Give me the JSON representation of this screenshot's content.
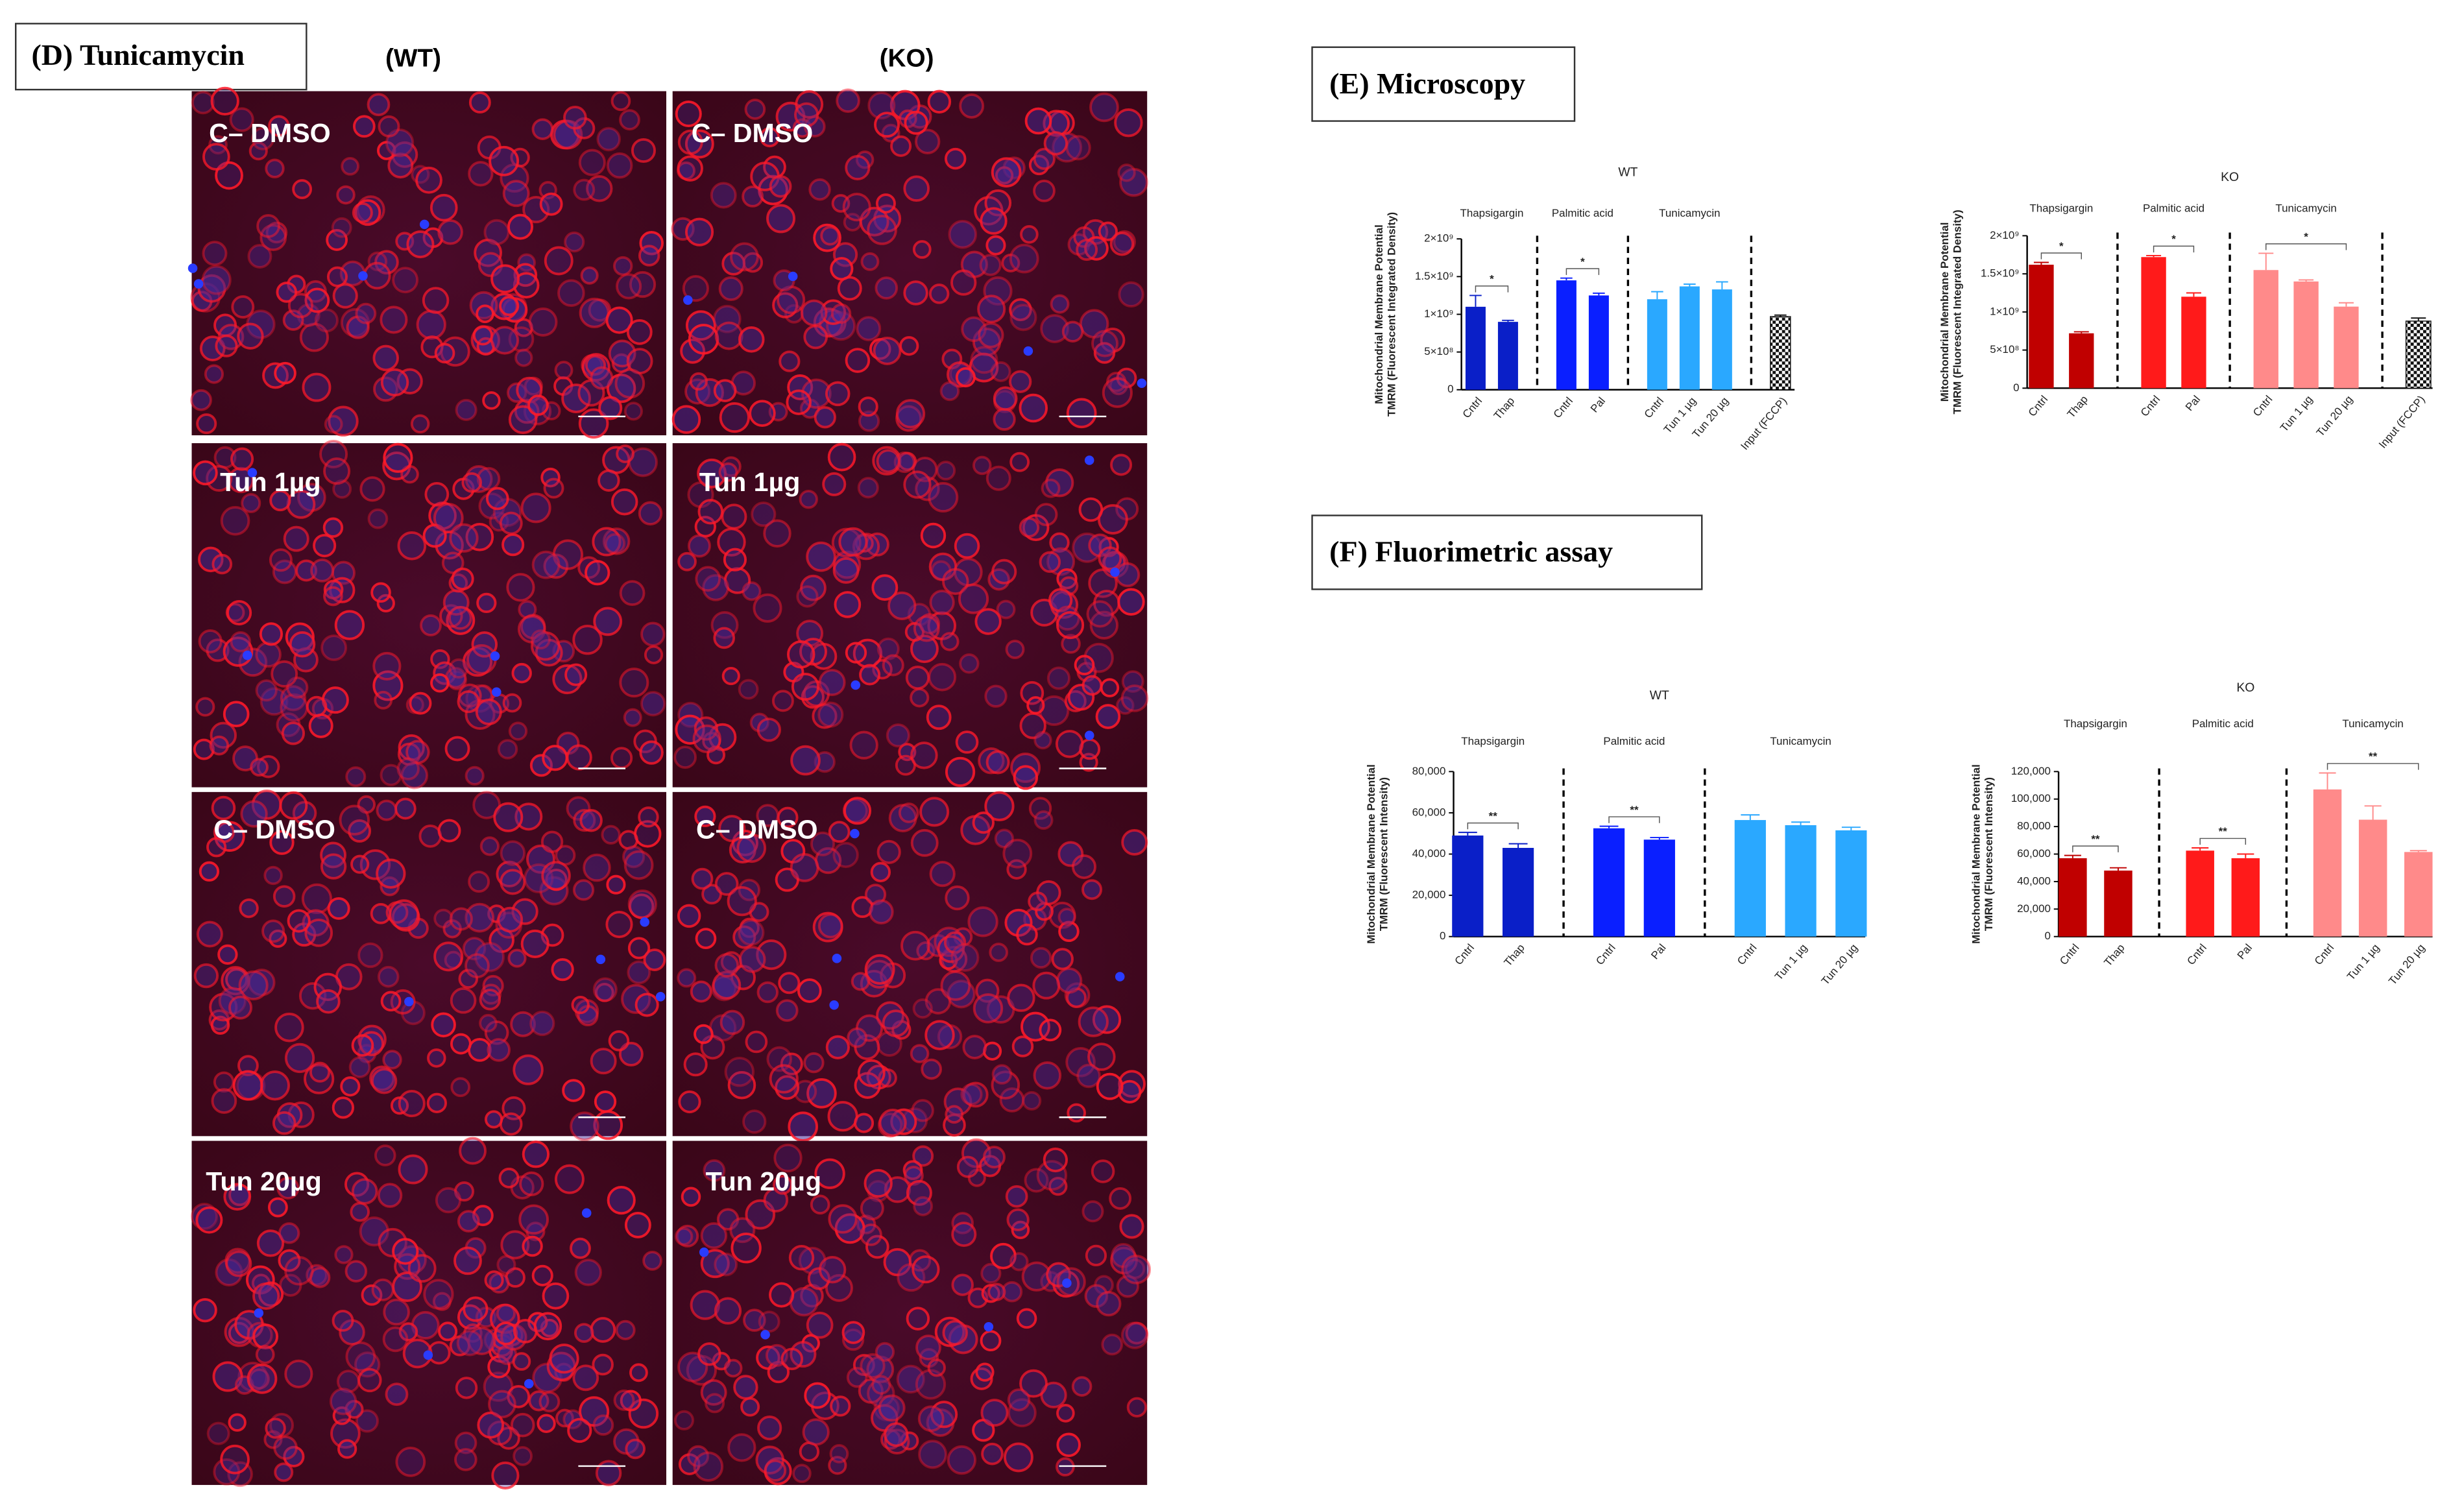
{
  "panels": {
    "D": "(D) Tunicamycin",
    "E": "(E) Microscopy",
    "F": "(F) Fluorimetric assay"
  },
  "microscopy": {
    "columns": [
      "(WT)",
      "(KO)"
    ],
    "rows": [
      [
        "C– DMSO",
        "C– DMSO"
      ],
      [
        "Tun 1µg",
        "Tun 1µg"
      ],
      [
        "C– DMSO",
        "C– DMSO"
      ],
      [
        "Tun 20µg",
        "Tun 20µg"
      ]
    ]
  },
  "chart_data": [
    {
      "type": "bar",
      "title": "WT",
      "ylabel": [
        "Mitochondrial Membrane Potential",
        "TMRM (Fluorescent Integrated Density)"
      ],
      "categories": [
        "Cntrl",
        "Thap",
        "Cntrl",
        "Pal",
        "Cntrl",
        "Tun 1 µg",
        "Tun 20 µg",
        "Input (FCCP)"
      ],
      "values": [
        1100000000,
        900000000,
        1450000000,
        1250000000,
        1200000000,
        1370000000,
        1330000000,
        970000000
      ],
      "errors": [
        150000000,
        20000000,
        30000000,
        30000000,
        100000000,
        30000000,
        100000000,
        20000000
      ],
      "colors": [
        "#0a1fc8",
        "#0a1fc8",
        "#0a1fff",
        "#0a1fff",
        "#2aa8ff",
        "#2aa8ff",
        "#2aa8ff",
        "#111111"
      ],
      "patterns": [
        null,
        null,
        null,
        null,
        null,
        null,
        null,
        "checker"
      ],
      "groups": [
        {
          "name": "Thapsigargin",
          "categories": [
            0,
            1
          ]
        },
        {
          "name": "Palmitic acid",
          "categories": [
            2,
            3
          ]
        },
        {
          "name": "Tunicamycin",
          "categories": [
            4,
            5,
            6
          ]
        },
        {
          "categories": [
            7
          ]
        }
      ],
      "annotations": [
        {
          "text": "*",
          "bars": [
            0,
            1
          ]
        },
        {
          "text": "*",
          "bars": [
            2,
            3
          ]
        }
      ],
      "ylim": [
        0,
        2000000000
      ],
      "yticks": [
        0,
        {
          "value": 500000000,
          "label": "5×10⁸"
        },
        {
          "value": 1000000000,
          "label": "1×10⁹"
        },
        {
          "value": 1500000000,
          "label": "1.5×10⁹"
        },
        {
          "value": 2000000000,
          "label": "2×10⁹"
        }
      ]
    },
    {
      "type": "bar",
      "title": "KO",
      "ylabel": [
        "Mitochondrial Membrane Potential",
        "TMRM (Fluorescent Integrated Density)"
      ],
      "categories": [
        "Cntrl",
        "Thap",
        "Cntrl",
        "Pal",
        "Cntrl",
        "Tun 1 µg",
        "Tun 20 µg",
        "Input (FCCP)"
      ],
      "values": [
        1620000000,
        720000000,
        1720000000,
        1200000000,
        1550000000,
        1400000000,
        1070000000,
        880000000
      ],
      "errors": [
        30000000,
        20000000,
        20000000,
        50000000,
        220000000,
        20000000,
        50000000,
        40000000
      ],
      "colors": [
        "#c00000",
        "#c00000",
        "#ff1a1a",
        "#ff1a1a",
        "#ff8a8a",
        "#ff8a8a",
        "#ff8a8a",
        "#111111"
      ],
      "patterns": [
        null,
        null,
        null,
        null,
        null,
        null,
        null,
        "checker"
      ],
      "groups": [
        {
          "name": "Thapsigargin",
          "categories": [
            0,
            1
          ]
        },
        {
          "name": "Palmitic acid",
          "categories": [
            2,
            3
          ]
        },
        {
          "name": "Tunicamycin",
          "categories": [
            4,
            5,
            6
          ]
        },
        {
          "categories": [
            7
          ]
        }
      ],
      "annotations": [
        {
          "text": "*",
          "bars": [
            0,
            1
          ]
        },
        {
          "text": "*",
          "bars": [
            2,
            3
          ]
        },
        {
          "text": "*",
          "bars": [
            4,
            6
          ]
        }
      ],
      "ylim": [
        0,
        2000000000
      ],
      "yticks": [
        0,
        {
          "value": 500000000,
          "label": "5×10⁸"
        },
        {
          "value": 1000000000,
          "label": "1×10⁹"
        },
        {
          "value": 1500000000,
          "label": "1.5×10⁹"
        },
        {
          "value": 2000000000,
          "label": "2×10⁹"
        }
      ]
    },
    {
      "type": "bar",
      "title": "WT",
      "ylabel": [
        "Mitochondrial Membrane Potential",
        "TMRM (Fluorescent Intensity)"
      ],
      "categories": [
        "Cntrl",
        "Thap",
        "Cntrl",
        "Pal",
        "Cntrl",
        "Tun 1 µg",
        "Tun 20 µg"
      ],
      "values": [
        49000,
        43000,
        52500,
        47000,
        56500,
        54000,
        51500
      ],
      "errors": [
        1500,
        2000,
        1000,
        1000,
        2500,
        1500,
        1500
      ],
      "colors": [
        "#0a1fc8",
        "#0a1fc8",
        "#0a1fff",
        "#0a1fff",
        "#2aa8ff",
        "#2aa8ff",
        "#2aa8ff"
      ],
      "patterns": [
        null,
        null,
        null,
        null,
        null,
        null,
        null
      ],
      "groups": [
        {
          "name": "Thapsigargin",
          "categories": [
            0,
            1
          ]
        },
        {
          "name": "Palmitic acid",
          "categories": [
            2,
            3
          ]
        },
        {
          "name": "Tunicamycin",
          "categories": [
            4,
            5,
            6
          ]
        }
      ],
      "annotations": [
        {
          "text": "**",
          "bars": [
            0,
            1
          ]
        },
        {
          "text": "**",
          "bars": [
            2,
            3
          ]
        }
      ],
      "ylim": [
        0,
        80000
      ],
      "yticks": [
        0,
        {
          "value": 20000,
          "label": "20,000"
        },
        {
          "value": 40000,
          "label": "40,000"
        },
        {
          "value": 60000,
          "label": "60,000"
        },
        {
          "value": 80000,
          "label": "80,000"
        }
      ]
    },
    {
      "type": "bar",
      "title": "KO",
      "ylabel": [
        "Mitochondrial Membrane Potential",
        "TMRM (Fluorescent Intensity)"
      ],
      "categories": [
        "Cntrl",
        "Thap",
        "Cntrl",
        "Pal",
        "Cntrl",
        "Tun 1 µg",
        "Tun 20 µg"
      ],
      "values": [
        57000,
        48000,
        62500,
        57000,
        107000,
        85000,
        61500
      ],
      "errors": [
        2000,
        2000,
        2000,
        3000,
        12000,
        10000,
        1000
      ],
      "colors": [
        "#c00000",
        "#c00000",
        "#ff1a1a",
        "#ff1a1a",
        "#ff8a8a",
        "#ff8a8a",
        "#ff8a8a"
      ],
      "patterns": [
        null,
        null,
        null,
        null,
        null,
        null,
        null
      ],
      "groups": [
        {
          "name": "Thapsigargin",
          "categories": [
            0,
            1
          ]
        },
        {
          "name": "Palmitic acid",
          "categories": [
            2,
            3
          ]
        },
        {
          "name": "Tunicamycin",
          "categories": [
            4,
            5,
            6
          ]
        }
      ],
      "annotations": [
        {
          "text": "**",
          "bars": [
            0,
            1
          ]
        },
        {
          "text": "**",
          "bars": [
            2,
            3
          ]
        },
        {
          "text": "**",
          "bars": [
            4,
            6
          ]
        }
      ],
      "ylim": [
        0,
        120000
      ],
      "yticks": [
        0,
        {
          "value": 20000,
          "label": "20,000"
        },
        {
          "value": 40000,
          "label": "40,000"
        },
        {
          "value": 60000,
          "label": "60,000"
        },
        {
          "value": 80000,
          "label": "80,000"
        },
        {
          "value": 100000,
          "label": "100,000"
        },
        {
          "value": 120000,
          "label": "120,000"
        }
      ]
    }
  ]
}
